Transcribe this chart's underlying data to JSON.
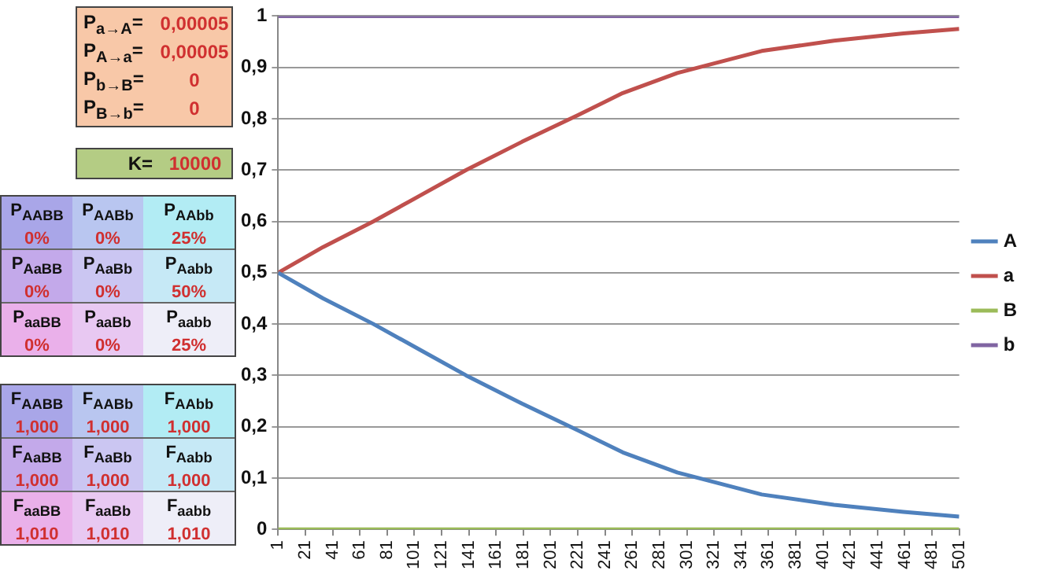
{
  "chart_data": [
    {
      "type": "other",
      "annotations": [
        "P$_{a→A}$=",
        "0,00005",
        "P$_{A→a}$=",
        "0,00005",
        "P$_{b→B}$=",
        "0",
        "P$_{B→b}$=",
        "0",
        "K=",
        "10000",
        "P$_{AABB}$",
        "0%",
        "P$_{AABb}$",
        "0%",
        "P$_{AAbb}$",
        "25%",
        "P$_{AaBB}$",
        "0%",
        "P$_{AaBb}$",
        "0%",
        "P$_{Aabb}$",
        "50%",
        "P$_{aaBB}$",
        "0%",
        "P$_{aaBb}$",
        "0%",
        "P$_{aabb}$",
        "25%",
        "F$_{AABB}$",
        "1,000",
        "F$_{AABb}$",
        "1,000",
        "F$_{AAbb}$",
        "1,000",
        "F$_{AaBB}$",
        "1,000",
        "F$_{AaBb}$",
        "1,000",
        "F$_{Aabb}$",
        "1,000",
        "F$_{aaBB}$",
        "1,010",
        "F$_{aaBb}$",
        "1,010",
        "F$_{aabb}$",
        "1,010"
      ]
    },
    {
      "type": "line",
      "xlim": [
        1,
        501
      ],
      "xticks": [
        1,
        21,
        41,
        61,
        81,
        101,
        121,
        141,
        161,
        181,
        201,
        221,
        241,
        261,
        281,
        301,
        321,
        341,
        361,
        381,
        401,
        421,
        441,
        461,
        481,
        501
      ],
      "ylim": [
        0,
        1
      ],
      "yticks": [
        0,
        {
          "value": 0.1,
          "label": "0,1"
        },
        {
          "value": 0.2,
          "label": "0,2"
        },
        {
          "value": 0.3,
          "label": "0,3"
        },
        {
          "value": 0.4,
          "label": "0,4"
        },
        {
          "value": 0.5,
          "label": "0,5"
        },
        {
          "value": 0.6,
          "label": "0,6"
        },
        {
          "value": 0.7,
          "label": "0,7"
        },
        {
          "value": 0.8,
          "label": "0,8"
        },
        {
          "value": 0.9,
          "label": "0,9"
        },
        1
      ],
      "grid": "y",
      "legend": "right",
      "marker": "none",
      "line_style": "solid",
      "series": [
        {
          "name": "A",
          "color": "#4f81bd",
          "x": [
            1,
            34,
            71,
            105,
            139,
            180,
            221,
            254,
            294,
            356,
            409,
            460,
            501
          ],
          "values": [
            0.5,
            0.45,
            0.4,
            0.35,
            0.3,
            0.245,
            0.193,
            0.15,
            0.111,
            0.068,
            0.048,
            0.034,
            0.025
          ]
        },
        {
          "name": "a",
          "color": "#c0504d",
          "x": [
            1,
            34,
            71,
            105,
            139,
            180,
            221,
            254,
            294,
            356,
            409,
            460,
            501
          ],
          "values": [
            0.5,
            0.55,
            0.6,
            0.65,
            0.7,
            0.755,
            0.807,
            0.85,
            0.889,
            0.932,
            0.952,
            0.966,
            0.975
          ]
        },
        {
          "name": "B",
          "color": "#9bbb59",
          "x": [
            1,
            501
          ],
          "values": [
            0,
            0
          ]
        },
        {
          "name": "b",
          "color": "#8064a2",
          "x": [
            1,
            501
          ],
          "values": [
            1,
            1
          ]
        }
      ]
    }
  ]
}
